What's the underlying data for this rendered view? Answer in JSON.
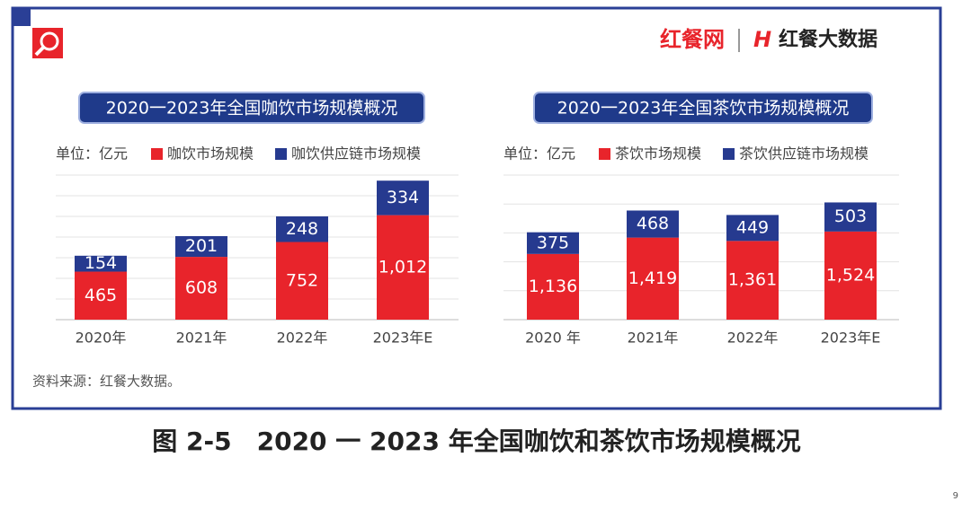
{
  "brand": {
    "site": "红餐网",
    "name": "红餐大数据"
  },
  "chart_data": [
    {
      "type": "bar",
      "stacked": true,
      "title": "2020一2023年全国咖饮市场规模概况",
      "unit": "单位：亿元",
      "categories": [
        "2020年",
        "2021年",
        "2022年",
        "2023年E"
      ],
      "series": [
        {
          "name": "咖饮市场规模",
          "color": "#e8242b",
          "values": [
            465,
            608,
            752,
            1012
          ],
          "value_labels": [
            "465",
            "608",
            "752",
            "1,012"
          ]
        },
        {
          "name": "咖饮供应链市场规模",
          "color": "#263a8f",
          "values": [
            154,
            201,
            248,
            334
          ]
        }
      ],
      "ylim": [
        0,
        1400
      ],
      "yticks": [
        0,
        200,
        400,
        600,
        800,
        1000,
        1200,
        1400
      ],
      "grid": true
    },
    {
      "type": "bar",
      "stacked": true,
      "title": "2020一2023年全国茶饮市场规模概况",
      "unit": "单位：亿元",
      "categories": [
        "2020 年",
        "2021年",
        "2022年",
        "2023年E"
      ],
      "series": [
        {
          "name": "茶饮市场规模",
          "color": "#e8242b",
          "values": [
            1136,
            1419,
            1361,
            1524
          ],
          "value_labels": [
            "1,136",
            "1,419",
            "1,361",
            "1,524"
          ]
        },
        {
          "name": "茶饮供应链市场规模",
          "color": "#263a8f",
          "values": [
            375,
            468,
            449,
            503
          ]
        }
      ],
      "ylim": [
        0,
        2500
      ],
      "yticks": [
        0,
        500,
        1000,
        1500,
        2000,
        2500
      ],
      "grid": true
    }
  ],
  "source": "资料来源：红餐大数据。",
  "caption": "图 2-5　2020 一 2023 年全国咖饮和茶饮市场规模概况",
  "page_number": "9"
}
